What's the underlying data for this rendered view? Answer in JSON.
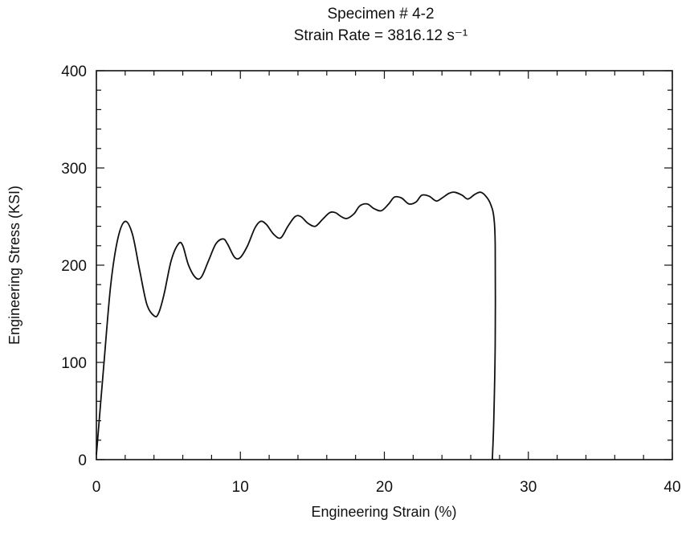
{
  "chart_data": {
    "type": "line",
    "title": "Specimen # 4-2",
    "subtitle": "Strain Rate = 3816.12 s⁻¹",
    "xlabel": "Engineering Strain (%)",
    "ylabel": "Engineering Stress (KSI)",
    "xlim": [
      0,
      40
    ],
    "ylim": [
      0,
      400
    ],
    "xticks": [
      "0",
      "10",
      "20",
      "30",
      "40"
    ],
    "yticks": [
      "0",
      "100",
      "200",
      "300",
      "400"
    ],
    "grid": false,
    "legend": "none",
    "series": [
      {
        "color": "#111111",
        "x": [
          0,
          0.5,
          1.0,
          1.5,
          2.0,
          2.5,
          3.0,
          3.5,
          4.0,
          4.3,
          4.7,
          5.2,
          5.7,
          6.0,
          6.4,
          6.9,
          7.3,
          7.8,
          8.3,
          8.8,
          9.1,
          9.6,
          10.0,
          10.5,
          11.0,
          11.4,
          11.8,
          12.3,
          12.8,
          13.3,
          13.8,
          14.2,
          14.7,
          15.2,
          15.7,
          16.2,
          16.6,
          17.0,
          17.4,
          17.9,
          18.3,
          18.8,
          19.3,
          19.8,
          20.3,
          20.7,
          21.2,
          21.7,
          22.2,
          22.6,
          23.1,
          23.6,
          24.0,
          24.5,
          24.9,
          25.4,
          25.8,
          26.3,
          26.7,
          27.1,
          27.4,
          27.6,
          27.7,
          27.7,
          27.6,
          27.5
        ],
        "y": [
          5,
          95,
          180,
          228,
          245,
          232,
          195,
          160,
          148,
          150,
          170,
          205,
          222,
          220,
          200,
          187,
          188,
          205,
          222,
          227,
          222,
          208,
          208,
          220,
          238,
          245,
          242,
          232,
          228,
          240,
          250,
          250,
          243,
          240,
          247,
          254,
          254,
          250,
          248,
          253,
          261,
          263,
          258,
          256,
          263,
          270,
          269,
          263,
          265,
          272,
          271,
          266,
          269,
          274,
          275,
          272,
          268,
          273,
          275,
          270,
          262,
          250,
          220,
          120,
          40,
          0
        ]
      }
    ]
  }
}
